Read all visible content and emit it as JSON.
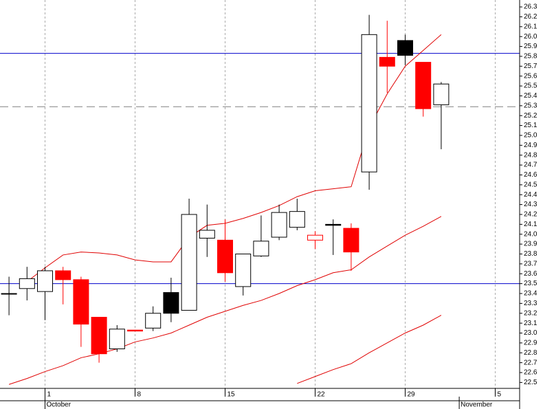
{
  "chart_data": {
    "type": "candlestick",
    "categories": [
      null,
      null,
      "1",
      null,
      null,
      null,
      null,
      "8",
      null,
      null,
      null,
      null,
      "15",
      null,
      null,
      null,
      null,
      "22",
      null,
      null,
      null,
      null,
      "29",
      null,
      null,
      null,
      null,
      "5",
      null
    ],
    "month_labels": [
      {
        "label": "October",
        "at": 2
      },
      {
        "label": "November",
        "at": 25
      }
    ],
    "open": [
      23.4,
      23.45,
      23.42,
      23.63,
      23.54,
      23.16,
      22.84,
      23.03,
      23.05,
      23.41,
      23.23,
      23.96,
      23.94,
      23.47,
      23.78,
      23.97,
      24.07,
      23.99,
      24.1,
      24.06,
      24.63,
      25.79,
      25.96,
      25.74,
      25.31,
      null,
      null,
      null,
      null
    ],
    "high": [
      23.57,
      23.67,
      23.67,
      23.67,
      23.57,
      23.16,
      23.08,
      23.03,
      23.27,
      23.56,
      24.36,
      24.3,
      24.15,
      23.8,
      24.19,
      24.3,
      24.36,
      24.03,
      24.15,
      24.11,
      26.22,
      26.16,
      26.02,
      25.74,
      25.54,
      null,
      null,
      null,
      null
    ],
    "low": [
      23.18,
      23.33,
      23.13,
      23.29,
      22.86,
      22.7,
      22.81,
      23.02,
      23.02,
      23.11,
      23.23,
      23.77,
      23.52,
      23.38,
      23.77,
      23.94,
      24.04,
      23.85,
      23.79,
      23.63,
      24.45,
      25.43,
      25.71,
      25.19,
      24.86,
      null,
      null,
      null,
      null
    ],
    "close": [
      23.4,
      23.55,
      23.63,
      23.54,
      23.09,
      22.79,
      23.04,
      23.02,
      23.2,
      23.2,
      24.2,
      24.04,
      23.61,
      23.8,
      23.93,
      24.22,
      24.23,
      23.94,
      24.09,
      23.82,
      26.02,
      25.7,
      25.81,
      25.27,
      25.52,
      null,
      null,
      null,
      null
    ],
    "fill": [
      "#ffffff",
      "#ffffff",
      "#ffffff",
      "#ff0000",
      "#ff0000",
      "#ff0000",
      "#ffffff",
      "#ff0000",
      "#ffffff",
      "#000000",
      "#ffffff",
      "#ffffff",
      "#ff0000",
      "#ffffff",
      "#ffffff",
      "#ffffff",
      "#ffffff",
      "#ffffff",
      "#000000",
      "#ff0000",
      "#ffffff",
      "#ff0000",
      "#000000",
      "#ff0000",
      "#ffffff",
      null,
      null,
      null,
      null
    ],
    "edge": [
      "#000000",
      "#000000",
      "#000000",
      "#ff0000",
      "#ff0000",
      "#ff0000",
      "#000000",
      "#ff0000",
      "#000000",
      "#000000",
      "#000000",
      "#000000",
      "#ff0000",
      "#000000",
      "#000000",
      "#000000",
      "#000000",
      "#ff0000",
      "#000000",
      "#ff0000",
      "#000000",
      "#ff0000",
      "#000000",
      "#ff0000",
      "#000000",
      null,
      null,
      null,
      null
    ],
    "series": [
      {
        "color": "#e00000",
        "values": [
          null,
          23.52,
          23.66,
          23.79,
          23.82,
          23.81,
          23.79,
          23.74,
          23.72,
          23.72,
          23.97,
          24.09,
          24.11,
          24.16,
          24.22,
          24.29,
          24.38,
          24.44,
          24.46,
          24.48,
          25.08,
          25.42,
          25.7,
          25.86,
          26.02,
          null,
          null,
          null,
          null
        ]
      },
      {
        "color": "#e00000",
        "values": [
          22.48,
          22.54,
          22.61,
          22.67,
          22.75,
          22.79,
          22.84,
          22.91,
          22.95,
          23.0,
          23.08,
          23.16,
          23.22,
          23.28,
          23.33,
          23.4,
          23.48,
          23.54,
          23.61,
          23.64,
          23.77,
          23.88,
          23.99,
          24.08,
          24.18,
          null,
          null,
          null,
          null
        ]
      },
      {
        "color": "#e00000",
        "values": [
          null,
          null,
          null,
          null,
          null,
          null,
          null,
          null,
          null,
          null,
          null,
          null,
          null,
          null,
          null,
          null,
          22.49,
          22.56,
          22.63,
          22.69,
          22.8,
          22.9,
          23.0,
          23.08,
          23.18,
          null,
          null,
          null,
          null
        ]
      }
    ],
    "hlines": [
      {
        "value": 25.83,
        "color": "#0000cc",
        "dashed": false
      },
      {
        "value": 25.29,
        "color": "#808080",
        "dashed": true
      },
      {
        "value": 23.5,
        "color": "#0000cc",
        "dashed": false
      }
    ],
    "ylim": [
      22.44,
      26.37
    ],
    "yticks": [
      22.5,
      22.6,
      22.7,
      22.8,
      22.9,
      {
        "value": 23,
        "label": "23.0"
      },
      23.1,
      23.2,
      23.3,
      23.4,
      23.5,
      23.6,
      23.7,
      23.8,
      23.9,
      {
        "value": 24,
        "label": "24.0"
      },
      24.1,
      24.2,
      24.3,
      24.4,
      24.5,
      24.6,
      24.7,
      24.8,
      24.9,
      {
        "value": 25,
        "label": "25.0"
      },
      25.1,
      25.2,
      25.3,
      25.4,
      25.5,
      25.6,
      25.7,
      25.8,
      25.9,
      {
        "value": 26,
        "label": "26.0"
      },
      26.1,
      26.2,
      26.3
    ],
    "grid": true
  }
}
